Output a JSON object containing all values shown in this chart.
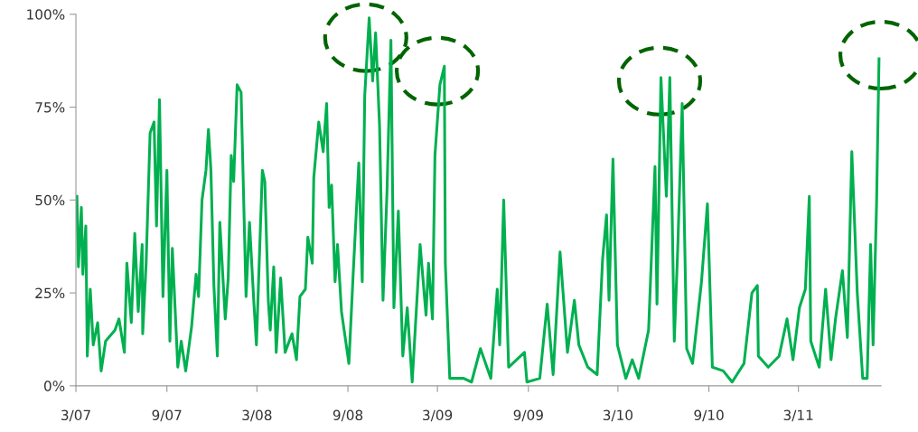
{
  "chart_data": {
    "type": "line",
    "x": [
      "2007-03-03",
      "2007-03-06",
      "2007-03-12",
      "2007-03-15",
      "2007-03-21",
      "2007-03-24",
      "2007-03-30",
      "2007-04-05",
      "2007-04-14",
      "2007-04-21",
      "2007-04-30",
      "2007-05-19",
      "2007-05-27",
      "2007-06-07",
      "2007-06-12",
      "2007-06-21",
      "2007-06-28",
      "2007-07-05",
      "2007-07-13",
      "2007-07-14",
      "2007-07-21",
      "2007-07-29",
      "2007-08-06",
      "2007-08-11",
      "2007-08-17",
      "2007-08-24",
      "2007-09-01",
      "2007-09-07",
      "2007-09-12",
      "2007-09-23",
      "2007-09-30",
      "2007-10-09",
      "2007-10-21",
      "2007-10-30",
      "2007-11-04",
      "2007-11-11",
      "2007-11-19",
      "2007-11-24",
      "2007-11-29",
      "2007-12-05",
      "2007-12-12",
      "2007-12-17",
      "2007-12-28",
      "2008-01-03",
      "2008-01-09",
      "2008-01-14",
      "2008-01-21",
      "2008-01-29",
      "2008-02-08",
      "2008-02-15",
      "2008-02-24",
      "2008-02-29",
      "2008-03-12",
      "2008-03-17",
      "2008-03-24",
      "2008-03-28",
      "2008-04-04",
      "2008-04-09",
      "2008-04-18",
      "2008-04-27",
      "2008-05-11",
      "2008-05-20",
      "2008-05-27",
      "2008-06-07",
      "2008-06-12",
      "2008-06-21",
      "2008-06-24",
      "2008-07-04",
      "2008-07-13",
      "2008-07-20",
      "2008-07-25",
      "2008-07-30",
      "2008-08-06",
      "2008-08-11",
      "2008-08-19",
      "2008-09-03",
      "2008-09-12",
      "2008-09-23",
      "2008-09-30",
      "2008-10-05",
      "2008-10-14",
      "2008-10-21",
      "2008-10-27",
      "2008-11-04",
      "2008-11-11",
      "2008-11-19",
      "2008-11-27",
      "2008-12-03",
      "2008-12-12",
      "2008-12-21",
      "2008-12-30",
      "2009-01-09",
      "2009-01-25",
      "2009-02-06",
      "2009-02-11",
      "2009-02-19",
      "2009-02-24",
      "2009-03-06",
      "2009-03-15",
      "2009-03-17",
      "2009-03-26",
      "2009-04-23",
      "2009-05-09",
      "2009-05-27",
      "2009-06-17",
      "2009-06-30",
      "2009-07-05",
      "2009-07-13",
      "2009-07-23",
      "2009-08-24",
      "2009-08-29",
      "2009-09-24",
      "2009-10-09",
      "2009-10-21",
      "2009-11-04",
      "2009-11-19",
      "2009-12-03",
      "2009-12-12",
      "2009-12-30",
      "2010-01-18",
      "2010-01-29",
      "2010-02-06",
      "2010-02-11",
      "2010-02-19",
      "2010-02-28",
      "2010-03-17",
      "2010-03-30",
      "2010-04-12",
      "2010-05-02",
      "2010-05-15",
      "2010-05-19",
      "2010-05-27",
      "2010-06-07",
      "2010-06-14",
      "2010-06-23",
      "2010-06-30",
      "2010-07-09",
      "2010-07-18",
      "2010-07-30",
      "2010-08-17",
      "2010-08-29",
      "2010-09-08",
      "2010-09-30",
      "2010-10-18",
      "2010-11-11",
      "2010-11-27",
      "2010-12-08",
      "2010-12-10",
      "2010-12-30",
      "2011-01-21",
      "2011-02-06",
      "2011-02-18",
      "2011-03-03",
      "2011-03-15",
      "2011-03-23",
      "2011-03-26",
      "2011-04-12",
      "2011-04-25",
      "2011-05-06",
      "2011-05-15",
      "2011-05-29",
      "2011-06-08",
      "2011-06-17",
      "2011-06-28",
      "2011-07-09",
      "2011-07-18",
      "2011-07-25",
      "2011-07-30",
      "2011-08-06",
      "2011-08-11"
    ],
    "series": [
      {
        "color": "#00b050",
        "values": [
          51,
          32,
          48,
          30,
          43,
          8,
          26,
          11,
          17,
          4,
          12,
          15,
          18,
          9,
          33,
          17,
          41,
          20,
          38,
          14,
          33,
          68,
          71,
          43,
          77,
          24,
          58,
          12,
          37,
          5,
          12,
          4,
          16,
          30,
          24,
          50,
          58,
          69,
          58,
          27,
          8,
          44,
          18,
          29,
          62,
          55,
          81,
          79,
          24,
          44,
          22,
          11,
          58,
          55,
          23,
          15,
          32,
          9,
          29,
          9,
          14,
          7,
          24,
          26,
          40,
          33,
          56,
          71,
          63,
          76,
          48,
          54,
          28,
          38,
          20,
          6,
          31,
          60,
          28,
          78,
          99,
          82,
          95,
          70,
          23,
          52,
          93,
          21,
          47,
          8,
          21,
          1,
          38,
          19,
          33,
          18,
          62,
          81,
          86,
          33,
          2,
          2,
          1,
          10,
          2,
          26,
          11,
          50,
          5,
          9,
          1,
          2,
          22,
          3,
          36,
          9,
          23,
          11,
          5,
          3,
          34,
          46,
          23,
          61,
          11,
          2,
          7,
          2,
          15,
          59,
          22,
          83,
          51,
          83,
          12,
          37,
          76,
          10,
          6,
          28,
          49,
          5,
          4,
          1,
          6,
          25,
          27,
          8,
          5,
          8,
          18,
          7,
          21,
          26,
          51,
          12,
          5,
          26,
          7,
          18,
          31,
          13,
          63,
          25,
          2,
          2,
          38,
          11,
          49,
          88
        ]
      }
    ],
    "xlim": [
      "2007-03-01",
      "2011-08-15"
    ],
    "xticks": [
      {
        "value": "2007-03-01",
        "label": "3/07"
      },
      {
        "value": "2007-09-01",
        "label": "9/07"
      },
      {
        "value": "2008-03-01",
        "label": "3/08"
      },
      {
        "value": "2008-09-01",
        "label": "9/08"
      },
      {
        "value": "2009-03-01",
        "label": "3/09"
      },
      {
        "value": "2009-09-01",
        "label": "9/09"
      },
      {
        "value": "2010-03-01",
        "label": "3/10"
      },
      {
        "value": "2010-09-01",
        "label": "9/10"
      },
      {
        "value": "2011-03-01",
        "label": "3/11"
      }
    ],
    "ylim": [
      0,
      100
    ],
    "yticks": [
      {
        "value": 0,
        "label": "0%"
      },
      {
        "value": 25,
        "label": "25%"
      },
      {
        "value": 50,
        "label": "50%"
      },
      {
        "value": 75,
        "label": "75%"
      },
      {
        "value": 100,
        "label": "100%"
      }
    ],
    "marker": "none",
    "line_style": "solid"
  }
}
